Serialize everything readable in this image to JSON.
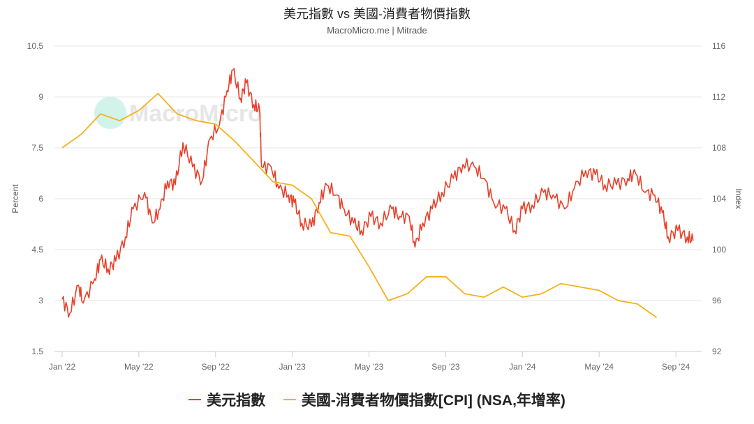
{
  "chart_data": {
    "type": "line",
    "title": "美元指數 vs 美國-消費者物價指數",
    "subtitle": "MacroMicro.me | Mitrade",
    "watermark": "MacroMicro",
    "x_unit": "months since Jan 2022",
    "x_ticks": [
      {
        "x": 0,
        "label": "Jan '22"
      },
      {
        "x": 4,
        "label": "May '22"
      },
      {
        "x": 8,
        "label": "Sep '22"
      },
      {
        "x": 12,
        "label": "Jan '23"
      },
      {
        "x": 16,
        "label": "May '23"
      },
      {
        "x": 20,
        "label": "Sep '23"
      },
      {
        "x": 24,
        "label": "Jan '24"
      },
      {
        "x": 28,
        "label": "May '24"
      },
      {
        "x": 32,
        "label": "Sep '24"
      }
    ],
    "y_left": {
      "label": "Percent",
      "min": 1.5,
      "max": 10.5,
      "ticks": [
        "1.5",
        "3",
        "4.5",
        "6",
        "7.5",
        "9",
        "10.5"
      ]
    },
    "y_right": {
      "label": "Index",
      "min": 92,
      "max": 116,
      "ticks": [
        "92",
        "96",
        "100",
        "104",
        "108",
        "112",
        "116"
      ]
    },
    "grid": true,
    "legend_position": "bottom",
    "series": [
      {
        "name": "美元指數",
        "axis": "right",
        "color": "#e8402a",
        "x": [
          0,
          0.4,
          0.85,
          1.1,
          1.7,
          2.0,
          2.4,
          2.8,
          3.3,
          3.7,
          4.3,
          4.7,
          5.1,
          5.5,
          5.9,
          6.3,
          6.8,
          7.3,
          7.7,
          8.2,
          8.6,
          8.9,
          9.3,
          9.6,
          10.0,
          10.3,
          10.4,
          10.9,
          11.3,
          11.8,
          12.1,
          12.5,
          13.0,
          13.4,
          13.8,
          14.3,
          14.7,
          15.2,
          15.6,
          16.1,
          16.6,
          17.2,
          17.6,
          18.1,
          18.4,
          18.8,
          19.3,
          19.8,
          20.4,
          20.9,
          21.5,
          22.0,
          22.5,
          23.1,
          23.6,
          24.0,
          24.5,
          25.1,
          25.6,
          26.2,
          26.7,
          27.3,
          27.8,
          28.3,
          28.9,
          29.5,
          29.9,
          30.4,
          30.9,
          31.3,
          31.6,
          32.1,
          32.6,
          32.9
        ],
        "values": [
          96.1,
          95.0,
          97.2,
          95.8,
          97.7,
          99.2,
          98.5,
          99.1,
          101.0,
          103.2,
          104.5,
          102.1,
          103.2,
          105.4,
          105.1,
          108.4,
          106.5,
          105.4,
          108.7,
          109.8,
          112.5,
          114.1,
          111.9,
          113.1,
          111.4,
          110.9,
          106.5,
          106.5,
          104.8,
          104.3,
          103.7,
          102.1,
          101.8,
          103.7,
          105.1,
          104.3,
          103.2,
          102.1,
          101.5,
          102.6,
          102.1,
          103.2,
          102.6,
          102.6,
          100.2,
          102.1,
          103.2,
          104.5,
          105.6,
          106.7,
          106.5,
          105.6,
          103.7,
          103.2,
          101.5,
          103.2,
          103.5,
          104.5,
          104.3,
          103.2,
          104.8,
          106.2,
          105.9,
          105.1,
          105.1,
          105.6,
          106.0,
          104.5,
          104.3,
          102.9,
          101.0,
          101.5,
          101.0,
          100.7
        ]
      },
      {
        "name": "美國-消費者物價指數[CPI] (NSA,年增率)",
        "axis": "left",
        "color": "#f5b21b",
        "x": [
          0,
          1,
          2,
          3,
          4,
          5,
          6,
          7,
          8,
          9,
          10,
          11,
          12,
          13,
          14,
          15,
          16,
          17,
          18,
          19,
          20,
          21,
          22,
          23,
          24,
          25,
          26,
          27,
          28,
          29,
          30,
          31
        ],
        "values": [
          7.5,
          7.9,
          8.5,
          8.3,
          8.6,
          9.1,
          8.5,
          8.3,
          8.2,
          7.7,
          7.1,
          6.5,
          6.4,
          6.0,
          5.0,
          4.9,
          4.0,
          3.0,
          3.2,
          3.7,
          3.7,
          3.2,
          3.1,
          3.4,
          3.1,
          3.2,
          3.5,
          3.4,
          3.3,
          3.0,
          2.9,
          2.5
        ]
      }
    ]
  }
}
